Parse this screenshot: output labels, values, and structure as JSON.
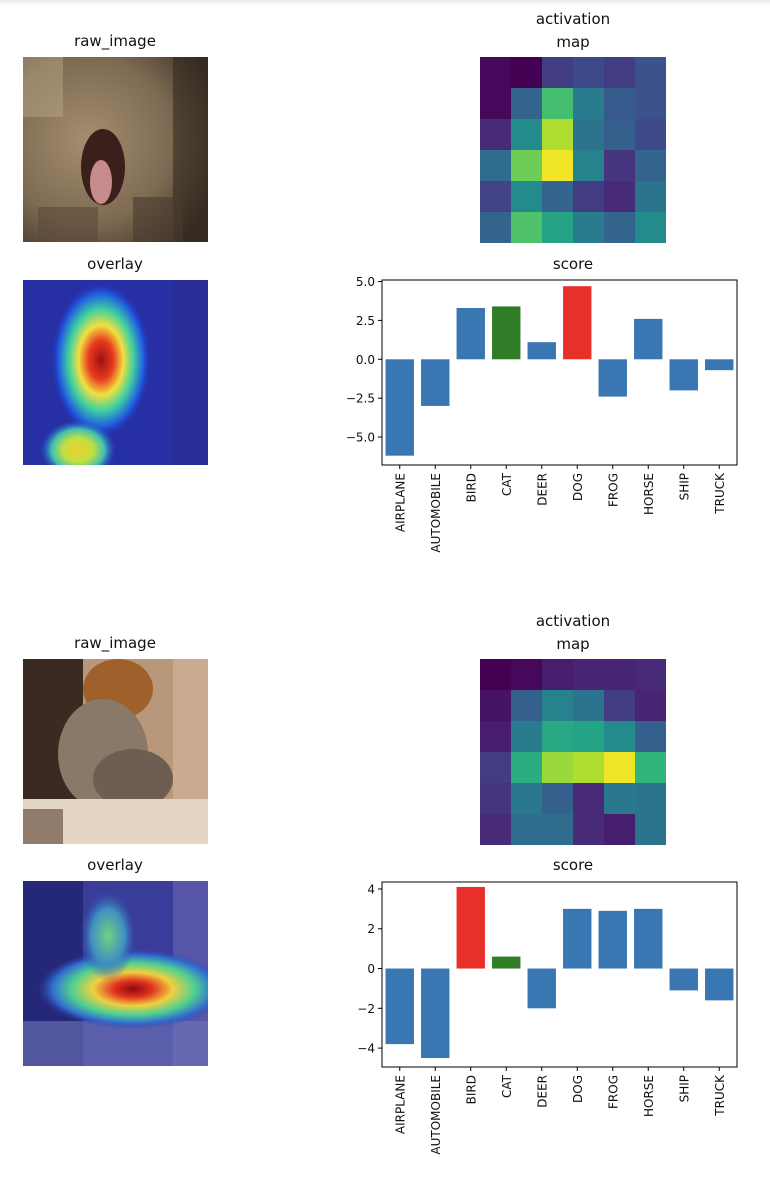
{
  "labels": {
    "raw_image": "raw_image",
    "activation_map_line1": "activation",
    "activation_map_line2": "map",
    "overlay": "overlay",
    "score": "score"
  },
  "colors": {
    "bar_default": "#3a76b1",
    "bar_predicted": "#e8302a",
    "bar_true": "#2f7d26"
  },
  "chart_data": [
    {
      "type": "bar",
      "title": "score",
      "categories": [
        "AIRPLANE",
        "AUTOMOBILE",
        "BIRD",
        "CAT",
        "DEER",
        "DOG",
        "FROG",
        "HORSE",
        "SHIP",
        "TRUCK"
      ],
      "values": [
        -6.2,
        -3.0,
        3.3,
        3.4,
        1.1,
        4.7,
        -2.4,
        2.6,
        -2.0,
        -0.7
      ],
      "bar_colors": [
        "#3a76b1",
        "#3a76b1",
        "#3a76b1",
        "#2f7d26",
        "#3a76b1",
        "#e8302a",
        "#3a76b1",
        "#3a76b1",
        "#3a76b1",
        "#3a76b1"
      ],
      "yticks": [
        5.0,
        2.5,
        0.0,
        -2.5,
        -5.0
      ],
      "ytick_labels": [
        "5.0",
        "2.5",
        "0.0",
        "−2.5",
        "−5.0"
      ],
      "ylim": [
        -6.8,
        5.1
      ]
    },
    {
      "type": "bar",
      "title": "score",
      "categories": [
        "AIRPLANE",
        "AUTOMOBILE",
        "BIRD",
        "CAT",
        "DEER",
        "DOG",
        "FROG",
        "HORSE",
        "SHIP",
        "TRUCK"
      ],
      "values": [
        -3.8,
        -4.5,
        4.1,
        0.6,
        -2.0,
        3.0,
        2.9,
        3.0,
        -1.1,
        -1.6
      ],
      "bar_colors": [
        "#3a76b1",
        "#3a76b1",
        "#e8302a",
        "#2f7d26",
        "#3a76b1",
        "#3a76b1",
        "#3a76b1",
        "#3a76b1",
        "#3a76b1",
        "#3a76b1"
      ],
      "yticks": [
        4,
        2,
        0,
        -2,
        -4
      ],
      "ytick_labels": [
        "4",
        "2",
        "0",
        "−2",
        "−4"
      ],
      "ylim": [
        -4.95,
        4.35
      ]
    },
    {
      "type": "heatmap",
      "title": "activation map",
      "values": [
        [
          0.02,
          0.0,
          0.18,
          0.22,
          0.18,
          0.25
        ],
        [
          0.02,
          0.32,
          0.7,
          0.42,
          0.28,
          0.25
        ],
        [
          0.12,
          0.48,
          0.88,
          0.38,
          0.3,
          0.22
        ],
        [
          0.35,
          0.78,
          0.98,
          0.45,
          0.15,
          0.32
        ],
        [
          0.2,
          0.48,
          0.32,
          0.18,
          0.12,
          0.38
        ],
        [
          0.32,
          0.72,
          0.58,
          0.42,
          0.32,
          0.48
        ]
      ]
    },
    {
      "type": "heatmap",
      "title": "activation map",
      "values": [
        [
          0.0,
          0.02,
          0.08,
          0.1,
          0.1,
          0.12
        ],
        [
          0.05,
          0.3,
          0.45,
          0.38,
          0.18,
          0.1
        ],
        [
          0.08,
          0.42,
          0.6,
          0.58,
          0.48,
          0.3
        ],
        [
          0.18,
          0.62,
          0.85,
          0.88,
          0.98,
          0.65
        ],
        [
          0.15,
          0.4,
          0.3,
          0.12,
          0.4,
          0.38
        ],
        [
          0.12,
          0.35,
          0.35,
          0.12,
          0.08,
          0.38
        ]
      ]
    }
  ]
}
